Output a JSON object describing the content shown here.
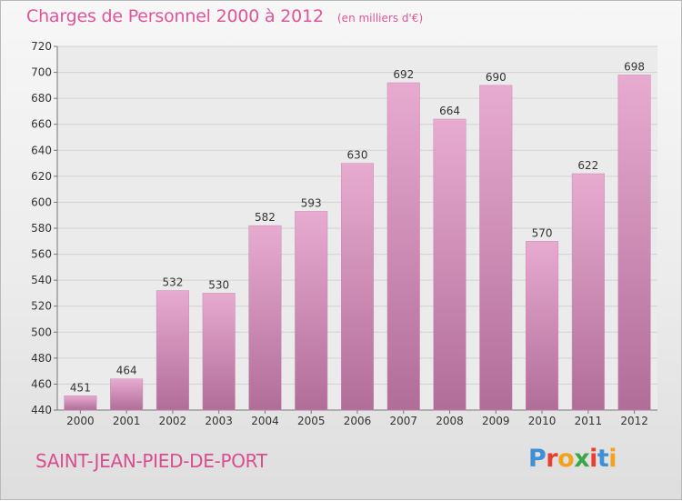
{
  "header": {
    "title": "Charges de Personnel 2000 à 2012",
    "unit_note": "(en milliers d'€)"
  },
  "footer": {
    "commune": "SAINT-JEAN-PIED-DE-PORT",
    "logo_text": "Proxiti"
  },
  "colors": {
    "bar_top": "#e8abd0",
    "bar_bottom": "#b06d98",
    "title": "#e0559a",
    "logo": [
      "#3d8fd6",
      "#e8402e",
      "#f2a21c",
      "#3aa64a",
      "#e8402e",
      "#3d8fd6",
      "#f2a21c"
    ]
  },
  "chart_data": {
    "type": "bar",
    "title": "Charges de Personnel 2000 à 2012",
    "subtitle": "(en milliers d'€)",
    "categories": [
      "2000",
      "2001",
      "2002",
      "2003",
      "2004",
      "2005",
      "2006",
      "2007",
      "2008",
      "2009",
      "2010",
      "2011",
      "2012"
    ],
    "values": [
      451,
      464,
      532,
      530,
      582,
      593,
      630,
      692,
      664,
      690,
      570,
      622,
      698
    ],
    "data_labels": [
      "451",
      "464",
      "532",
      "530",
      "582",
      "593",
      "630",
      "692",
      "664",
      "690",
      "570",
      "622",
      "698"
    ],
    "ylim": [
      440,
      720
    ],
    "yticks": [
      440,
      460,
      480,
      500,
      520,
      540,
      560,
      580,
      600,
      620,
      640,
      660,
      680,
      700,
      720
    ],
    "ytick_labels": [
      "440",
      "460",
      "480",
      "500",
      "520",
      "540",
      "560",
      "580",
      "600",
      "620",
      "640",
      "660",
      "680",
      "700",
      "720"
    ],
    "grid": "horizontal",
    "xlabel": "",
    "ylabel": ""
  }
}
